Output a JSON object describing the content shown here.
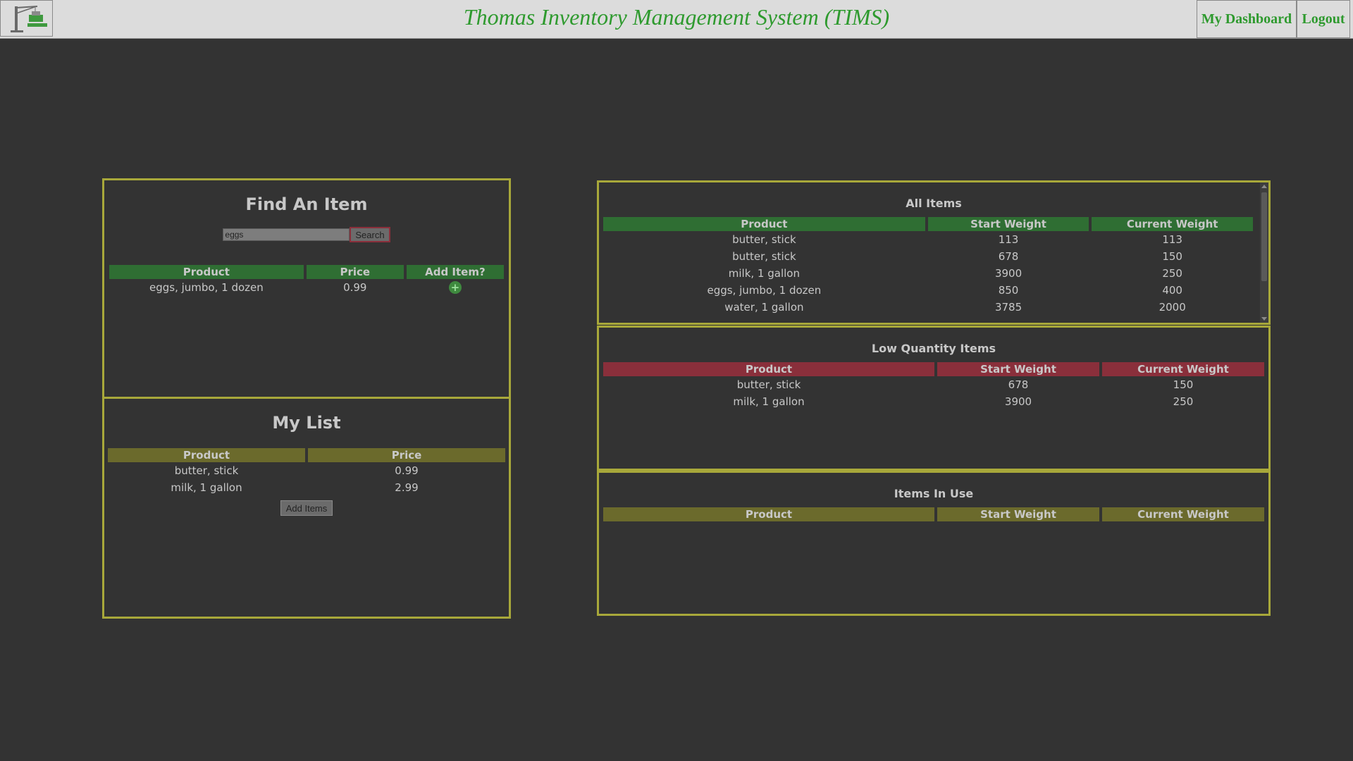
{
  "header": {
    "title": "Thomas Inventory Management System (TIMS)",
    "logo_icon": "crane-logo-icon",
    "nav": {
      "dashboard": "My Dashboard",
      "logout": "Logout"
    }
  },
  "find": {
    "title": "Find An Item",
    "search_value": "eggs",
    "search_button": "Search",
    "columns": [
      "Product",
      "Price",
      "Add Item?"
    ],
    "results": [
      {
        "product": "eggs, jumbo, 1 dozen",
        "price": "0.99"
      }
    ]
  },
  "mylist": {
    "title": "My List",
    "columns": [
      "Product",
      "Price"
    ],
    "items": [
      {
        "product": "butter, stick",
        "price": "0.99"
      },
      {
        "product": "milk, 1 gallon",
        "price": "2.99"
      }
    ],
    "add_button": "Add Items"
  },
  "all_items": {
    "title": "All Items",
    "columns": [
      "Product",
      "Start Weight",
      "Current Weight"
    ],
    "rows": [
      {
        "product": "butter, stick",
        "start": "113",
        "current": "113"
      },
      {
        "product": "butter, stick",
        "start": "678",
        "current": "150"
      },
      {
        "product": "milk, 1 gallon",
        "start": "3900",
        "current": "250"
      },
      {
        "product": "eggs, jumbo, 1 dozen",
        "start": "850",
        "current": "400"
      },
      {
        "product": "water, 1 gallon",
        "start": "3785",
        "current": "2000"
      }
    ]
  },
  "low_qty": {
    "title": "Low Quantity Items",
    "columns": [
      "Product",
      "Start Weight",
      "Current Weight"
    ],
    "rows": [
      {
        "product": "butter, stick",
        "start": "678",
        "current": "150"
      },
      {
        "product": "milk, 1 gallon",
        "start": "3900",
        "current": "250"
      }
    ]
  },
  "in_use": {
    "title": "Items In Use",
    "columns": [
      "Product",
      "Start Weight",
      "Current Weight"
    ]
  },
  "colors": {
    "accent_green": "#2e9a2e",
    "panel_border": "#a8a83a",
    "header_green": "#2f6e33",
    "header_red": "#8a2f3b",
    "header_olive": "#6b6a2c"
  }
}
